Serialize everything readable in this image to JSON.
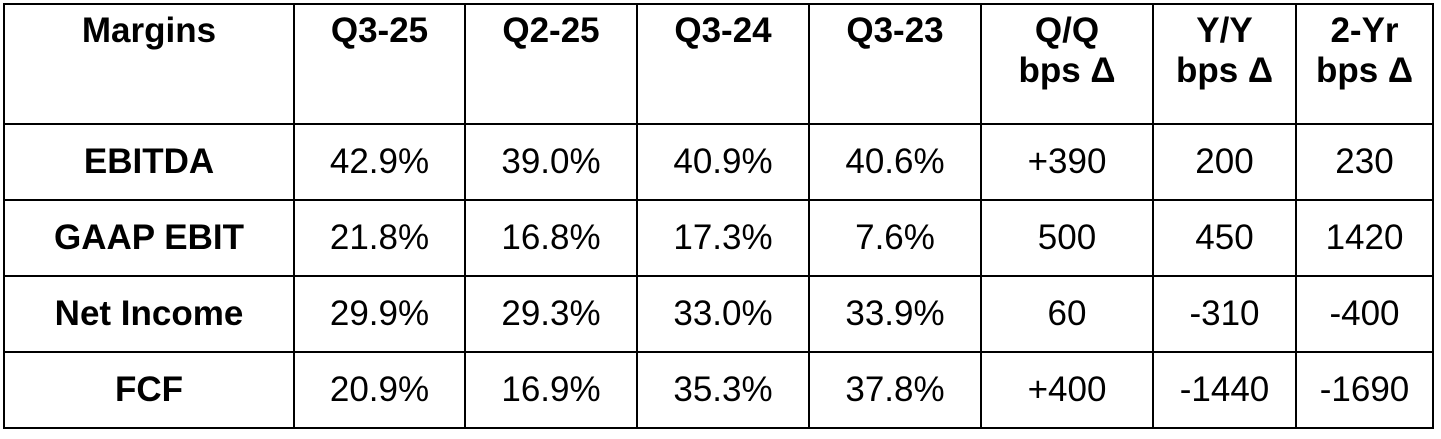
{
  "table": {
    "header": [
      "Margins",
      "Q3-25",
      "Q2-25",
      "Q3-24",
      "Q3-23",
      "Q/Q\nbps Δ",
      "Y/Y\nbps Δ",
      "2-Yr\nbps Δ"
    ],
    "rows": [
      [
        "EBITDA",
        "42.9%",
        "39.0%",
        "40.9%",
        "40.6%",
        "+390",
        "200",
        "230"
      ],
      [
        "GAAP EBIT",
        "21.8%",
        "16.8%",
        "17.3%",
        "7.6%",
        "500",
        "450",
        "1420"
      ],
      [
        "Net Income",
        "29.9%",
        "29.3%",
        "33.0%",
        "33.9%",
        "60",
        "-310",
        "-400"
      ],
      [
        "FCF",
        "20.9%",
        "16.9%",
        "35.3%",
        "37.8%",
        "+400",
        "-1440",
        "-1690"
      ]
    ]
  }
}
